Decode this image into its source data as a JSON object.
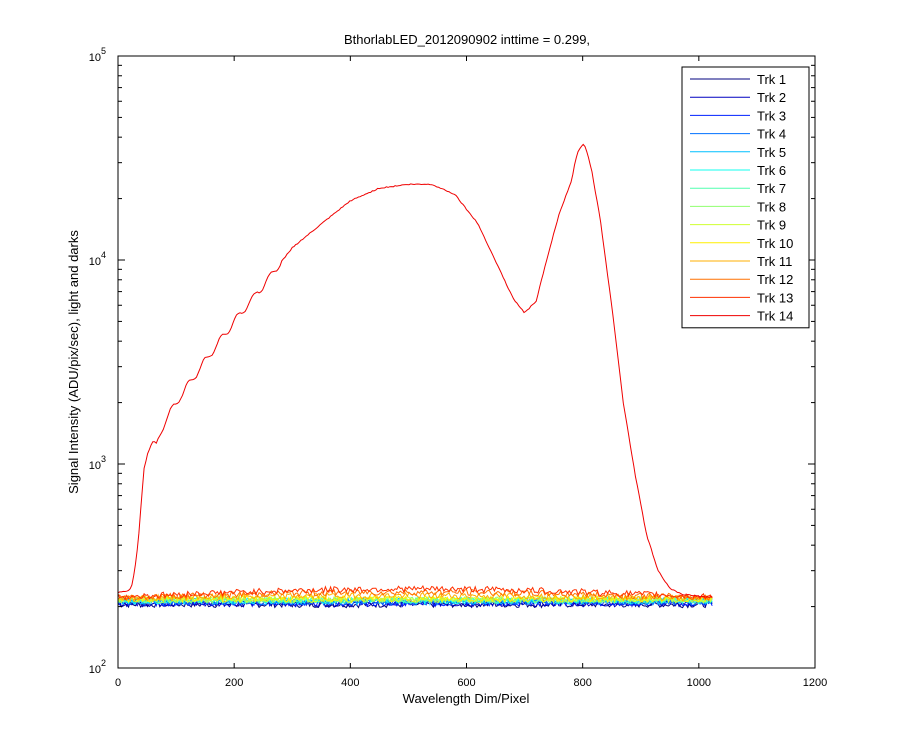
{
  "chart_data": {
    "type": "line",
    "y_scale": "log",
    "title": "BthorlabLED_2012090902 inttime = 0.299,",
    "xlabel": "Wavelength Dim/Pixel",
    "ylabel": "Signal Intensity (ADU/pix/sec), light and darks",
    "xlim": [
      0,
      1200
    ],
    "ylim": [
      100,
      100000
    ],
    "x_ticks": [
      0,
      200,
      400,
      600,
      800,
      1000,
      1200
    ],
    "y_tick_base": "10",
    "y_tick_exponents": [
      "2",
      "3",
      "4",
      "5"
    ],
    "legend_position": "top-right",
    "series": [
      {
        "name": "Trk 1",
        "color": "#00007f",
        "kind": "dark",
        "level": 205
      },
      {
        "name": "Trk 2",
        "color": "#0000c0",
        "kind": "dark",
        "level": 207
      },
      {
        "name": "Trk 3",
        "color": "#0020ff",
        "kind": "dark",
        "level": 209
      },
      {
        "name": "Trk 4",
        "color": "#0070ff",
        "kind": "dark",
        "level": 211
      },
      {
        "name": "Trk 5",
        "color": "#00bfff",
        "kind": "dark",
        "level": 213
      },
      {
        "name": "Trk 6",
        "color": "#10ffef",
        "kind": "dark",
        "level": 214
      },
      {
        "name": "Trk 7",
        "color": "#50ffaf",
        "kind": "dark",
        "level": 215
      },
      {
        "name": "Trk 8",
        "color": "#90ff6f",
        "kind": "dark",
        "level": 216
      },
      {
        "name": "Trk 9",
        "color": "#cfff30",
        "kind": "dark",
        "level": 217
      },
      {
        "name": "Trk 10",
        "color": "#ffef00",
        "kind": "dark",
        "level": 218
      },
      {
        "name": "Trk 11",
        "color": "#ffaf00",
        "kind": "hump",
        "level": 220,
        "hump": 0.03
      },
      {
        "name": "Trk 12",
        "color": "#ff7000",
        "kind": "hump",
        "level": 222,
        "hump": 0.06
      },
      {
        "name": "Trk 13",
        "color": "#ff3000",
        "kind": "hump",
        "level": 224,
        "hump": 0.09
      },
      {
        "name": "Trk 14",
        "color": "#ef0000",
        "kind": "light",
        "x": [
          0,
          20,
          25,
          30,
          35,
          40,
          45,
          50,
          55,
          60,
          65,
          70,
          80,
          100,
          150,
          200,
          250,
          300,
          350,
          400,
          450,
          500,
          540,
          580,
          620,
          660,
          680,
          700,
          720,
          740,
          760,
          780,
          790,
          800,
          805,
          815,
          830,
          850,
          870,
          890,
          910,
          930,
          950,
          970,
          1000,
          1024
        ],
        "y": [
          235,
          240,
          260,
          320,
          420,
          650,
          950,
          1100,
          1200,
          1280,
          1200,
          1350,
          1600,
          2000,
          3200,
          5000,
          7500,
          11500,
          15000,
          19500,
          22500,
          23500,
          23500,
          21000,
          15000,
          8600,
          6500,
          5500,
          6300,
          10500,
          17000,
          24000,
          33000,
          37000,
          36000,
          28000,
          16000,
          6000,
          2000,
          900,
          450,
          300,
          245,
          230,
          225,
          222
        ]
      }
    ],
    "data_extent": [
      0,
      1024
    ]
  }
}
